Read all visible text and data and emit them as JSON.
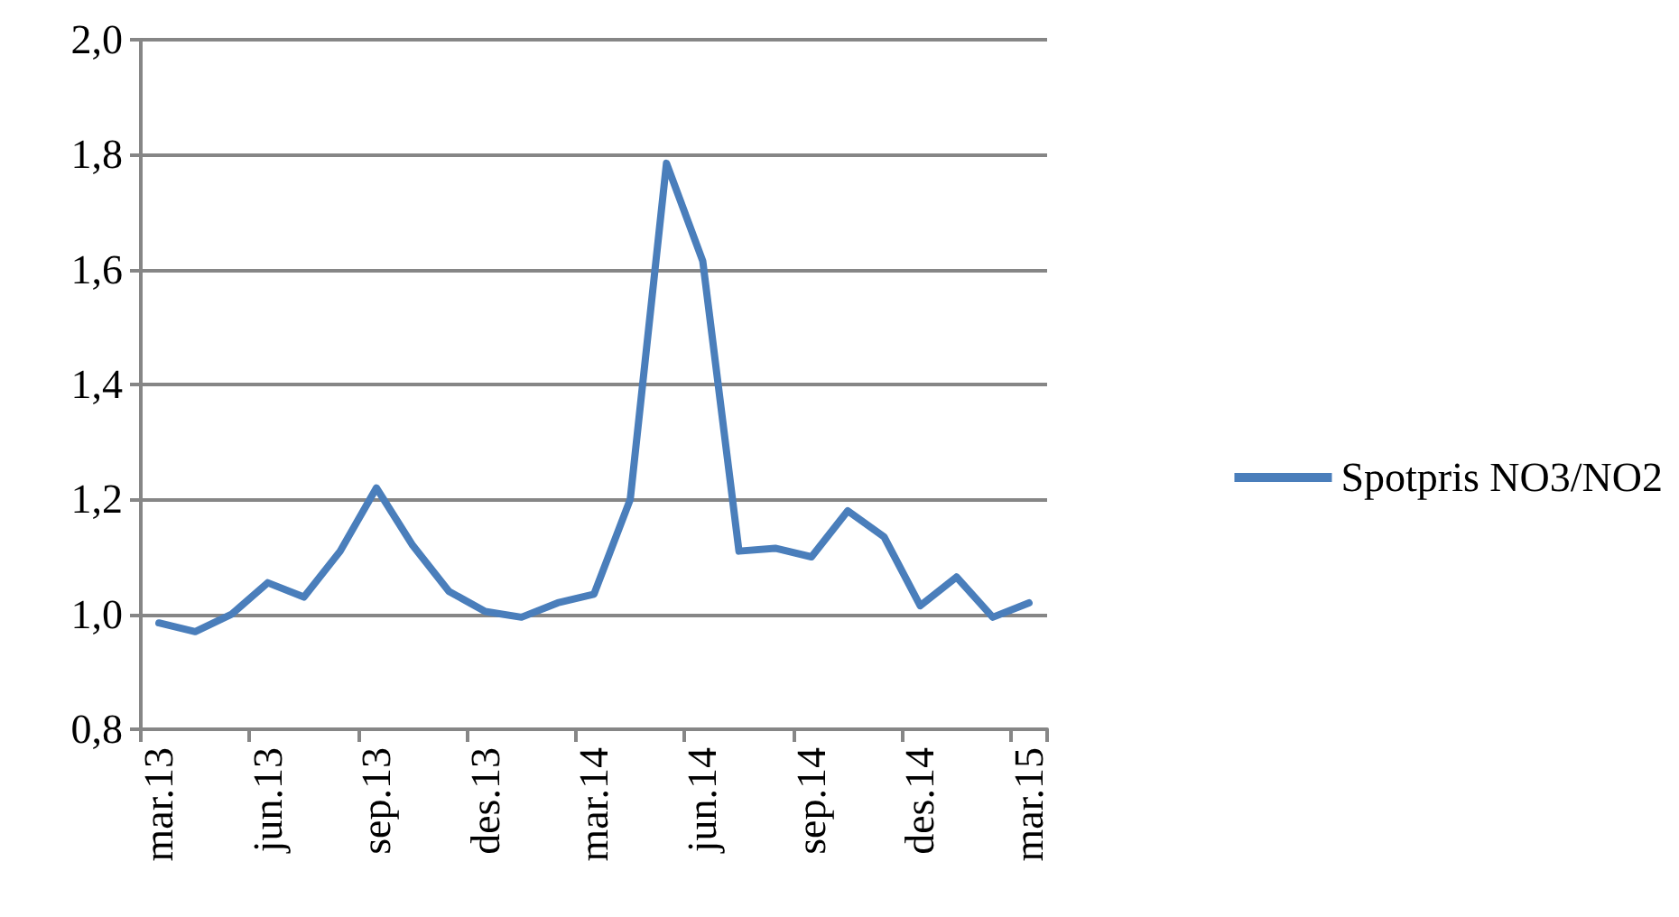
{
  "chart_data": {
    "type": "line",
    "categories": [
      "mar.13",
      null,
      null,
      "jun.13",
      null,
      null,
      "sep.13",
      null,
      null,
      "des.13",
      null,
      null,
      "mar.14",
      null,
      null,
      "jun.14",
      null,
      null,
      "sep.14",
      null,
      null,
      "des.14",
      null,
      null,
      "mar.15"
    ],
    "series": [
      {
        "name": "Spotpris NO3/NO2",
        "color": "#4a7ebb",
        "values": [
          0.985,
          0.97,
          1.0,
          1.055,
          1.03,
          1.11,
          1.22,
          1.12,
          1.04,
          1.005,
          0.995,
          1.02,
          1.035,
          1.2,
          1.785,
          1.615,
          1.11,
          1.115,
          1.1,
          1.18,
          1.135,
          1.015,
          1.065,
          0.995,
          1.02
        ]
      }
    ],
    "ylim": [
      0.8,
      2.0
    ],
    "yticks": [
      {
        "value": 0.8,
        "label": "0,8"
      },
      {
        "value": 1.0,
        "label": "1,0"
      },
      {
        "value": 1.2,
        "label": "1,2"
      },
      {
        "value": 1.4,
        "label": "1,4"
      },
      {
        "value": 1.6,
        "label": "1,6"
      },
      {
        "value": 1.8,
        "label": "1,8"
      },
      {
        "value": 2.0,
        "label": "2,0"
      }
    ],
    "grid": "y",
    "legend": "right",
    "marker": "none",
    "line_style": "solid"
  }
}
